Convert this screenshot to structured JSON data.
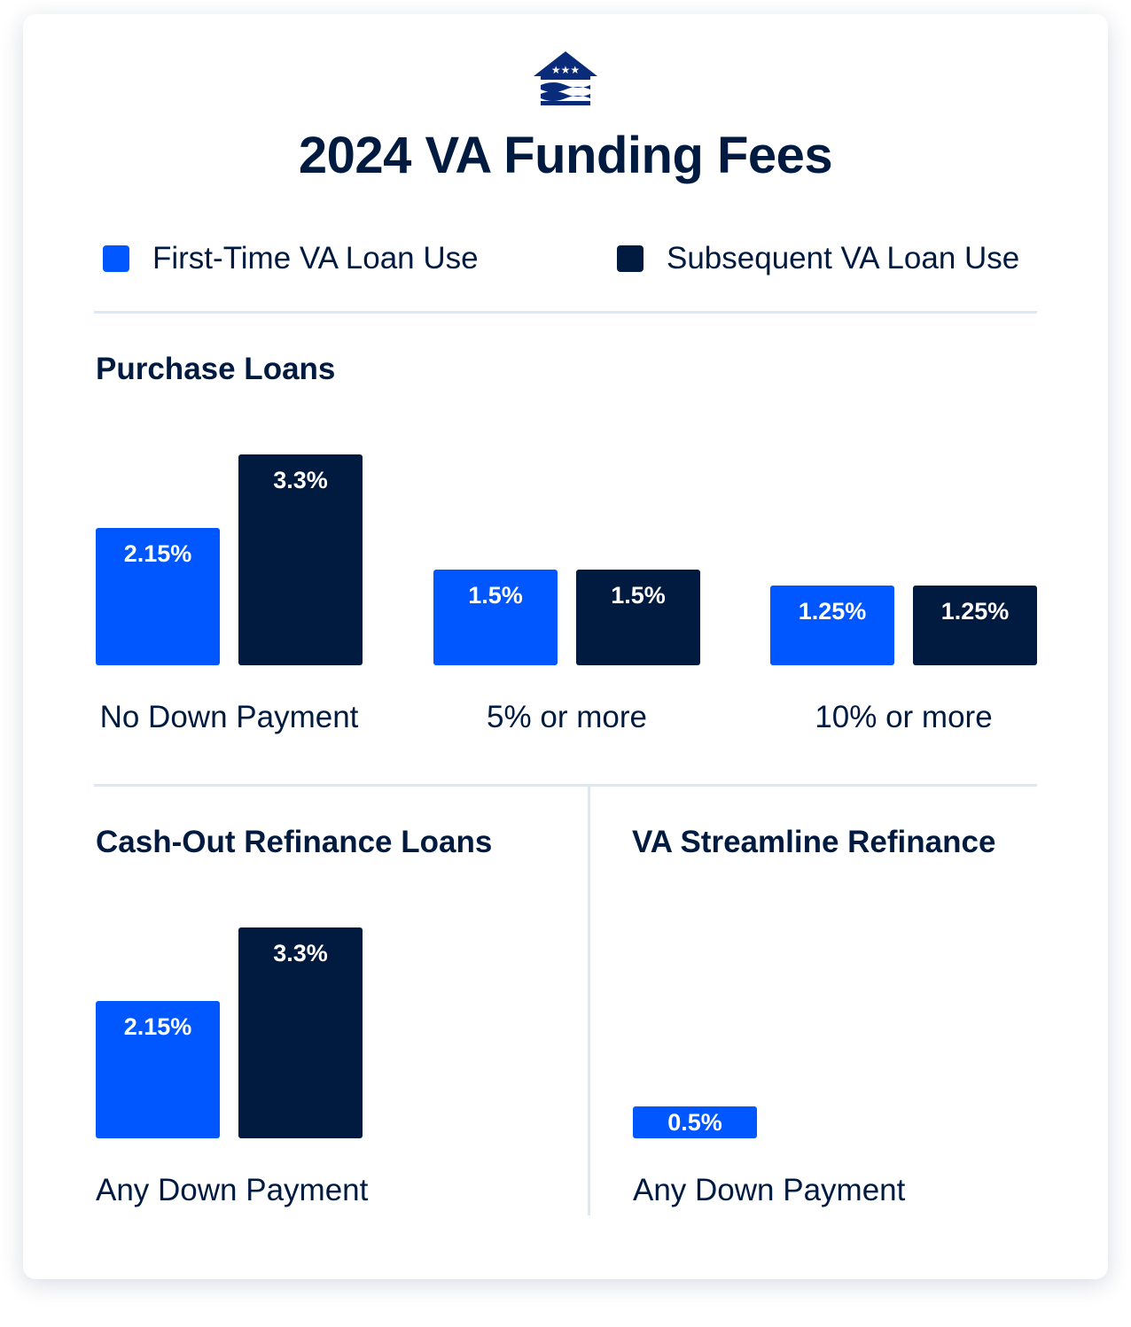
{
  "header": {
    "logo_icon": "house-flag-stars-icon",
    "title": "2024 VA Funding Fees"
  },
  "legend": [
    {
      "label": "First-Time VA Loan Use",
      "color": "#0057ff"
    },
    {
      "label": "Subsequent VA Loan Use",
      "color": "#001a40"
    }
  ],
  "chart_data": [
    {
      "type": "bar",
      "title": "Purchase Loans",
      "categories": [
        "No Down Payment",
        "5% or more",
        "10% or more"
      ],
      "series": [
        {
          "name": "First-Time VA Loan Use",
          "values": [
            2.15,
            1.5,
            1.25
          ],
          "labels": [
            "2.15%",
            "1.5%",
            "1.25%"
          ],
          "color": "#0057ff"
        },
        {
          "name": "Subsequent VA Loan Use",
          "values": [
            3.3,
            1.5,
            1.25
          ],
          "labels": [
            "3.3%",
            "1.5%",
            "1.25%"
          ],
          "color": "#001a40"
        }
      ]
    },
    {
      "type": "bar",
      "title": "Cash-Out Refinance Loans",
      "categories": [
        "Any Down Payment"
      ],
      "series": [
        {
          "name": "First-Time VA Loan Use",
          "values": [
            2.15
          ],
          "labels": [
            "2.15%"
          ],
          "color": "#0057ff"
        },
        {
          "name": "Subsequent VA Loan Use",
          "values": [
            3.3
          ],
          "labels": [
            "3.3%"
          ],
          "color": "#001a40"
        }
      ]
    },
    {
      "type": "bar",
      "title": "VA Streamline Refinance",
      "categories": [
        "Any Down Payment"
      ],
      "series": [
        {
          "name": "First-Time VA Loan Use",
          "values": [
            0.5
          ],
          "labels": [
            "0.5%"
          ],
          "color": "#0057ff"
        }
      ]
    }
  ]
}
